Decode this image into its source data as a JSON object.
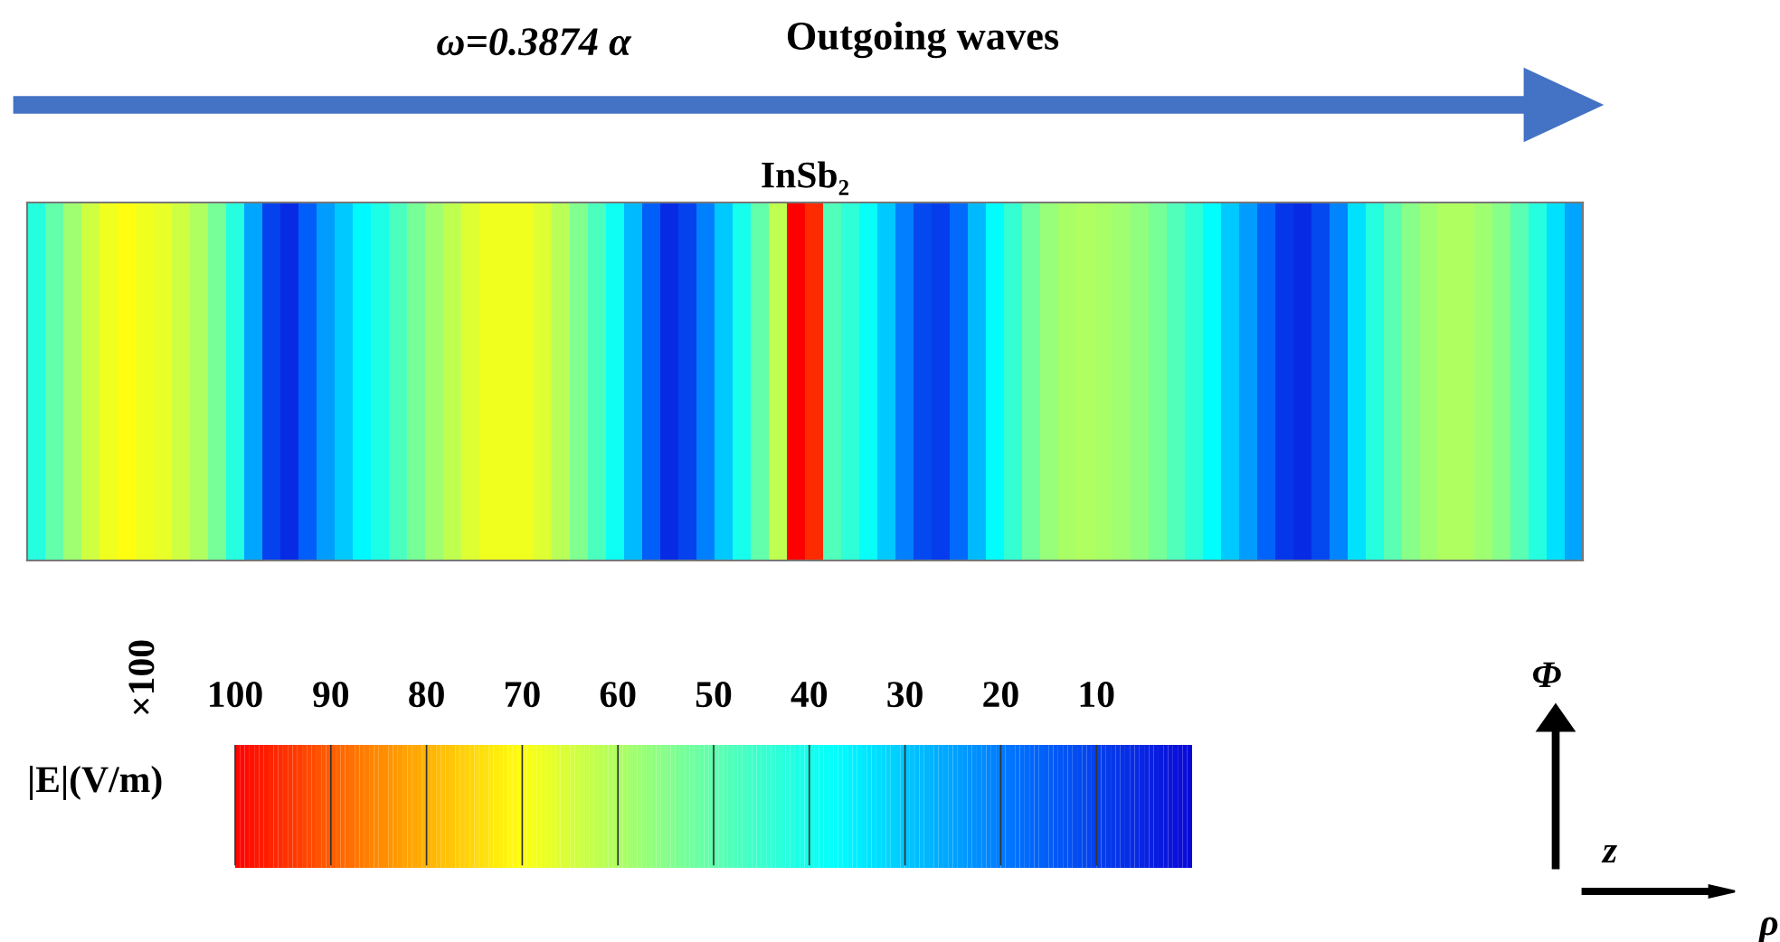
{
  "chart_data": {
    "type": "heatmap",
    "title": "InSb₂",
    "categories": [
      null,
      null,
      null,
      null,
      null,
      null,
      null,
      null,
      null,
      null,
      null,
      null,
      null,
      null,
      null,
      null,
      null,
      null,
      null,
      null,
      null,
      null,
      null,
      null,
      null,
      null,
      null,
      null,
      null,
      null,
      null,
      null,
      null,
      null,
      null,
      null,
      null,
      null,
      null,
      null,
      null,
      null,
      null,
      null,
      null,
      null,
      null,
      null,
      null,
      null,
      null,
      null,
      null,
      null,
      null,
      null,
      null,
      null,
      null,
      null,
      null,
      null,
      null,
      null,
      null,
      null,
      null,
      null,
      null,
      null,
      null,
      null,
      null,
      null,
      null,
      null,
      null,
      null,
      null,
      null,
      null,
      null,
      null,
      null,
      null,
      null
    ],
    "y_categories": [
      null
    ],
    "cells": [
      [
        42,
        50,
        58,
        64,
        68,
        70,
        68,
        67,
        64,
        60,
        53,
        42,
        25,
        10,
        6,
        15,
        24,
        30,
        36,
        41,
        47,
        53,
        58,
        62,
        66,
        68,
        68,
        68,
        66,
        61,
        54,
        47,
        39,
        28,
        15,
        6,
        10,
        20,
        30,
        40,
        50,
        62,
        100,
        95,
        48,
        43,
        38,
        30,
        20,
        11,
        9,
        17,
        28,
        37,
        44,
        52,
        57,
        59,
        60,
        59,
        58,
        56,
        53,
        48,
        43,
        37,
        30,
        24,
        16,
        8,
        6,
        11,
        21,
        33,
        42,
        49,
        55,
        58,
        60,
        60,
        58,
        55,
        49,
        42,
        33,
        25
      ]
    ],
    "clim": [
      100,
      0
    ],
    "cticks": [
      100,
      90,
      80,
      70,
      60,
      50,
      40,
      30,
      20,
      10
    ],
    "clabel": "|E|(V/m)",
    "tick_labels": false,
    "annotations": [
      "ω=0.3874 α",
      "Outgoing waves",
      "×100",
      "Φ",
      "z",
      "ρ"
    ]
  }
}
